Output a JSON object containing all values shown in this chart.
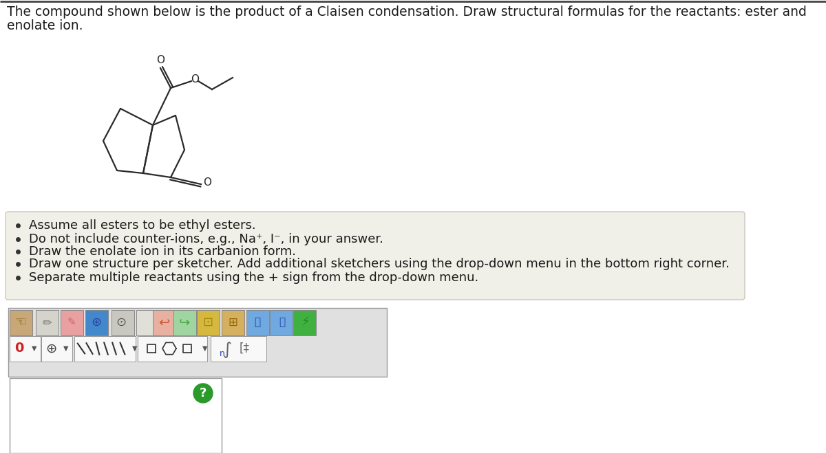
{
  "title_line1": "The compound shown below is the product of a Claisen condensation. Draw structural formulas for the reactants: ester and",
  "title_line2": "enolate ion.",
  "title_fontsize": 13.5,
  "title_color": "#1a1a1a",
  "bg_color": "#ffffff",
  "bullet_box_bg": "#f0f0e8",
  "bullet_box_border": "#c8c8c0",
  "bullets": [
    "Assume all esters to be ethyl esters.",
    "Do not include counter-ions, e.g., Na⁺, I⁻, in your answer.",
    "Draw the enolate ion in its carbanion form.",
    "Draw one structure per sketcher. Add additional sketchers using the drop-down menu in the bottom right corner.",
    "Separate multiple reactants using the + sign from the drop-down menu."
  ],
  "bullet_fontsize": 13,
  "mol_color": "#2a2a2a",
  "mol_lw": 1.6,
  "top_border_color": "#444444"
}
